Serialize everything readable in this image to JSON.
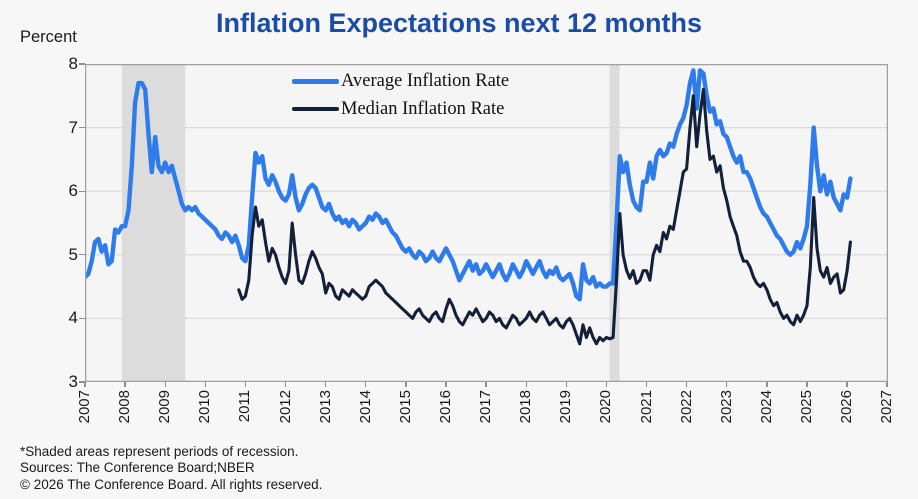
{
  "chart_data": {
    "type": "line",
    "title": "Inflation Expectations next 12 months",
    "title_color": "#1b4da8",
    "ylabel": "Percent",
    "xlabel": "",
    "ylim": [
      3,
      8
    ],
    "xlim": [
      2007,
      2027
    ],
    "y_ticks": [
      8,
      7,
      6,
      5,
      4,
      3
    ],
    "gridline_values": [
      4,
      5,
      6,
      7
    ],
    "x_ticks": [
      2007,
      2008,
      2009,
      2010,
      2011,
      2012,
      2013,
      2014,
      2015,
      2016,
      2017,
      2018,
      2019,
      2020,
      2021,
      2022,
      2023,
      2024,
      2025,
      2026,
      2027
    ],
    "legend_position": "top-center-inside",
    "grid": "horizontal-only",
    "colors": {
      "recession_band": "#dcdcdc",
      "gridline": "#d9d9d9",
      "plot_border": "#9f9f9f",
      "plot_background": "#f5f5f5"
    },
    "recession_bands": [
      {
        "from": 2007.92,
        "to": 2009.5,
        "note": "Great Recession (shaded)"
      },
      {
        "from": 2020.08,
        "to": 2020.33,
        "note": "COVID recession (shaded)"
      }
    ],
    "legend": [
      {
        "label": "Average Inflation Rate",
        "color": "#2e7cec",
        "swatch_height": 5
      },
      {
        "label": "Median Inflation Rate",
        "color": "#13203a",
        "swatch_height": 3.5
      }
    ],
    "x_unit": "monthly (year + month/12)",
    "series": [
      {
        "name": "Average Inflation Rate",
        "data_name": "average-inflation-line",
        "color": "#2e7cec",
        "stroke_width": 4.4,
        "start_year": 2007,
        "start_month": 1,
        "values": [
          4.65,
          4.7,
          4.9,
          5.2,
          5.25,
          5.05,
          5.15,
          4.85,
          4.9,
          5.4,
          5.35,
          5.45,
          5.45,
          5.7,
          6.4,
          7.4,
          7.7,
          7.7,
          7.6,
          6.9,
          6.3,
          6.85,
          6.4,
          6.3,
          6.45,
          6.3,
          6.4,
          6.2,
          6.0,
          5.8,
          5.7,
          5.75,
          5.7,
          5.75,
          5.65,
          5.6,
          5.55,
          5.5,
          5.45,
          5.4,
          5.3,
          5.25,
          5.35,
          5.3,
          5.2,
          5.3,
          5.15,
          4.95,
          4.9,
          5.15,
          5.9,
          6.6,
          6.45,
          6.55,
          6.2,
          6.1,
          6.25,
          6.15,
          6.0,
          5.9,
          5.85,
          5.95,
          6.25,
          5.9,
          5.7,
          5.8,
          5.95,
          6.05,
          6.1,
          6.05,
          5.9,
          5.75,
          5.7,
          5.8,
          5.65,
          5.55,
          5.6,
          5.5,
          5.55,
          5.45,
          5.55,
          5.5,
          5.4,
          5.45,
          5.5,
          5.6,
          5.55,
          5.65,
          5.6,
          5.5,
          5.55,
          5.45,
          5.35,
          5.3,
          5.2,
          5.1,
          5.05,
          5.1,
          5.0,
          4.95,
          5.05,
          5.0,
          4.9,
          4.95,
          5.05,
          4.95,
          4.9,
          5.0,
          5.1,
          5.0,
          4.9,
          4.75,
          4.6,
          4.7,
          4.8,
          4.9,
          4.75,
          4.85,
          4.7,
          4.75,
          4.85,
          4.75,
          4.65,
          4.75,
          4.85,
          4.7,
          4.6,
          4.7,
          4.85,
          4.75,
          4.65,
          4.75,
          4.9,
          4.8,
          4.7,
          4.8,
          4.9,
          4.75,
          4.65,
          4.75,
          4.7,
          4.8,
          4.65,
          4.6,
          4.65,
          4.7,
          4.55,
          4.35,
          4.3,
          4.85,
          4.6,
          4.55,
          4.65,
          4.5,
          4.55,
          4.5,
          4.5,
          4.55,
          4.55,
          5.5,
          6.55,
          6.3,
          6.45,
          6.1,
          5.85,
          5.75,
          5.7,
          6.15,
          6.15,
          6.45,
          6.2,
          6.55,
          6.65,
          6.55,
          6.6,
          6.75,
          6.7,
          6.9,
          7.05,
          7.15,
          7.35,
          7.7,
          7.9,
          7.3,
          7.9,
          7.85,
          7.5,
          7.25,
          7.3,
          7.05,
          7.1,
          6.9,
          6.85,
          6.7,
          6.55,
          6.45,
          6.55,
          6.3,
          6.3,
          6.2,
          6.05,
          5.9,
          5.75,
          5.65,
          5.6,
          5.5,
          5.4,
          5.3,
          5.25,
          5.15,
          5.05,
          5.0,
          5.05,
          5.2,
          5.1,
          5.25,
          5.45,
          6.1,
          7.0,
          6.4,
          6.0,
          6.25,
          5.95,
          6.15,
          5.9,
          5.8,
          5.7,
          5.95,
          5.9,
          6.2
        ]
      },
      {
        "name": "Median Inflation Rate",
        "data_name": "median-inflation-line",
        "color": "#13203a",
        "stroke_width": 3.1,
        "start_year": 2010,
        "start_month": 11,
        "values": [
          4.45,
          4.3,
          4.35,
          4.6,
          5.3,
          5.75,
          5.45,
          5.55,
          5.2,
          4.9,
          5.1,
          5.0,
          4.8,
          4.65,
          4.55,
          4.75,
          5.5,
          5.0,
          4.6,
          4.55,
          4.7,
          4.9,
          5.05,
          4.95,
          4.8,
          4.7,
          4.4,
          4.55,
          4.5,
          4.35,
          4.3,
          4.45,
          4.4,
          4.35,
          4.45,
          4.4,
          4.35,
          4.3,
          4.35,
          4.5,
          4.55,
          4.6,
          4.55,
          4.5,
          4.4,
          4.35,
          4.3,
          4.25,
          4.2,
          4.15,
          4.1,
          4.05,
          4.0,
          4.1,
          4.15,
          4.05,
          4.0,
          3.95,
          4.05,
          4.1,
          4.0,
          3.95,
          4.15,
          4.3,
          4.2,
          4.05,
          3.95,
          3.9,
          4.0,
          4.1,
          4.05,
          4.15,
          4.05,
          3.95,
          4.0,
          4.1,
          4.05,
          3.95,
          4.0,
          3.9,
          3.85,
          3.95,
          4.05,
          4.0,
          3.9,
          3.95,
          4.0,
          4.1,
          4.0,
          3.95,
          4.05,
          4.1,
          4.0,
          3.9,
          3.95,
          4.0,
          3.9,
          3.85,
          3.95,
          4.0,
          3.9,
          3.75,
          3.6,
          3.9,
          3.7,
          3.85,
          3.7,
          3.6,
          3.7,
          3.65,
          3.7,
          3.68,
          3.7,
          4.6,
          5.65,
          5.0,
          4.76,
          4.63,
          4.75,
          4.55,
          4.6,
          4.75,
          4.75,
          4.6,
          5.0,
          5.15,
          5.05,
          5.35,
          5.25,
          5.45,
          5.4,
          5.7,
          6.0,
          6.3,
          6.35,
          7.0,
          7.5,
          6.7,
          7.2,
          7.6,
          6.95,
          6.5,
          6.55,
          6.3,
          6.4,
          6.05,
          5.85,
          5.6,
          5.45,
          5.3,
          5.05,
          4.9,
          4.9,
          4.8,
          4.65,
          4.55,
          4.5,
          4.55,
          4.45,
          4.3,
          4.2,
          4.25,
          4.1,
          4.0,
          4.05,
          3.95,
          3.9,
          4.05,
          3.95,
          4.05,
          4.2,
          4.8,
          5.9,
          5.1,
          4.75,
          4.65,
          4.8,
          4.55,
          4.65,
          4.7,
          4.4,
          4.45,
          4.75,
          5.2
        ]
      }
    ]
  },
  "footer": {
    "line1": "*Shaded areas represent periods of recession.",
    "line2": "Sources: The Conference Board;NBER",
    "line3": "© 2026 The Conference Board. All rights reserved."
  }
}
